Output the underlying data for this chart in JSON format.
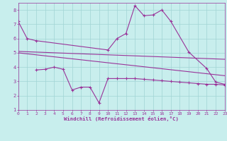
{
  "xlabel": "Windchill (Refroidissement éolien,°C)",
  "xlim": [
    0,
    23
  ],
  "ylim": [
    1,
    8.5
  ],
  "yticks": [
    1,
    2,
    3,
    4,
    5,
    6,
    7,
    8
  ],
  "xticks": [
    0,
    1,
    2,
    3,
    4,
    5,
    6,
    7,
    8,
    9,
    10,
    11,
    12,
    13,
    14,
    15,
    16,
    17,
    18,
    19,
    20,
    21,
    22,
    23
  ],
  "bg_color": "#c8eeed",
  "grid_color": "#a0d4d4",
  "line_color": "#993399",
  "line1_x": [
    0,
    1,
    2,
    10,
    11,
    12,
    13,
    14,
    15,
    16,
    17,
    19,
    21,
    22,
    23
  ],
  "line1_y": [
    7.2,
    6.0,
    5.85,
    5.2,
    6.0,
    6.35,
    8.3,
    7.6,
    7.65,
    8.0,
    7.2,
    5.05,
    3.9,
    2.95,
    2.8
  ],
  "line2_x": [
    0,
    23
  ],
  "line2_y": [
    5.1,
    4.55
  ],
  "line3_x": [
    0,
    23
  ],
  "line3_y": [
    5.0,
    3.4
  ],
  "line4_x": [
    2,
    3,
    4,
    5,
    6,
    7,
    8,
    9,
    10,
    11,
    12,
    13,
    14,
    15,
    16,
    17,
    18,
    19,
    20,
    21,
    22,
    23
  ],
  "line4_y": [
    3.8,
    3.85,
    4.0,
    3.85,
    2.4,
    2.6,
    2.6,
    1.5,
    3.2,
    3.2,
    3.2,
    3.2,
    3.15,
    3.1,
    3.05,
    3.0,
    2.95,
    2.9,
    2.85,
    2.8,
    2.8,
    2.75
  ]
}
